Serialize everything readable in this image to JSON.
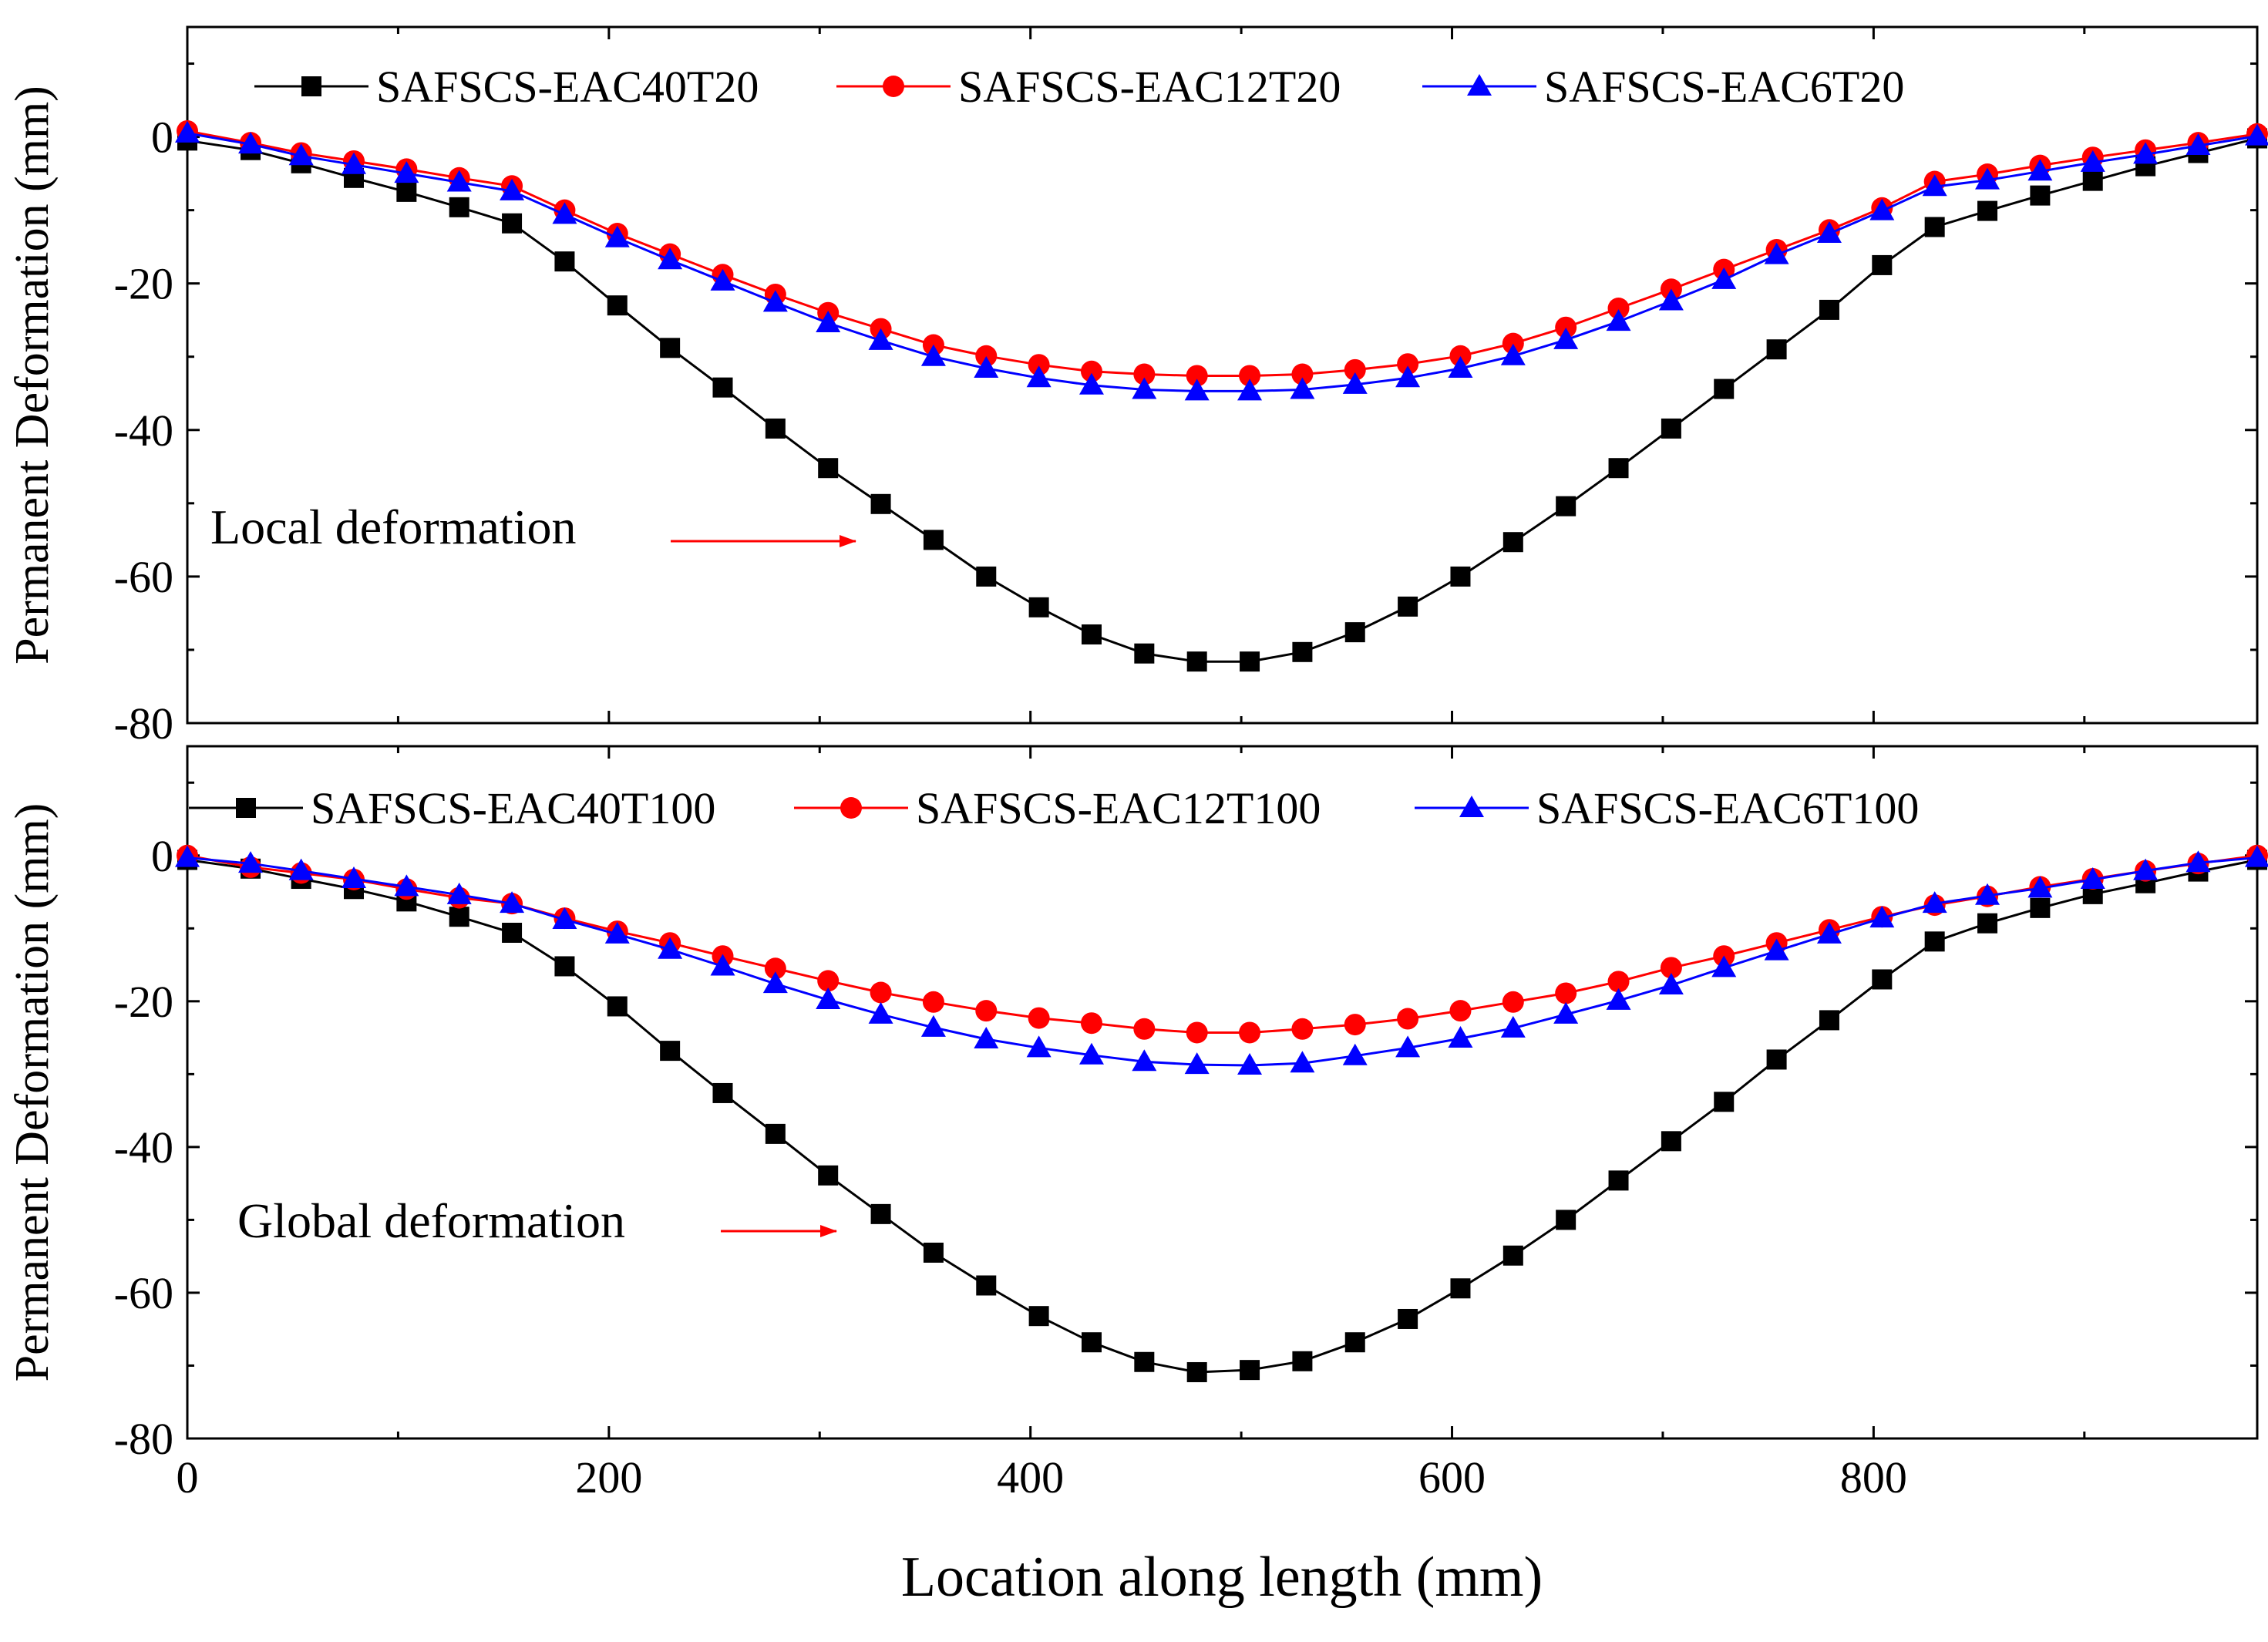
{
  "chart_data": [
    {
      "type": "line",
      "panel": "top",
      "xlabel": "Location along length (mm)",
      "ylabel": "Permanent Deformation (mm)",
      "xlim": [
        0,
        982
      ],
      "ylim": [
        -80,
        15
      ],
      "x_ticks": [
        0,
        200,
        400,
        600,
        800
      ],
      "y_ticks": [
        0,
        -20,
        -40,
        -60,
        -80
      ],
      "annotation": "Local deformation",
      "legend_position": "top",
      "x": [
        0,
        30,
        54,
        79,
        104,
        129,
        154,
        179,
        204,
        229,
        254,
        279,
        304,
        329,
        354,
        379,
        404,
        429,
        454,
        479,
        504,
        529,
        554,
        579,
        604,
        629,
        654,
        679,
        704,
        729,
        754,
        779,
        804,
        829,
        854,
        879,
        904,
        929,
        954,
        982
      ],
      "series": [
        {
          "name": "SAFSCS-EAC40T20",
          "color": "#000000",
          "marker": "square",
          "values": [
            -0.5,
            -1.8,
            -3.6,
            -5.6,
            -7.5,
            -9.6,
            -11.8,
            -17,
            -23,
            -28.8,
            -34.2,
            -39.8,
            -45.2,
            -50.1,
            -55,
            -60,
            -64.2,
            -67.9,
            -70.5,
            -71.6,
            -71.6,
            -70.3,
            -67.6,
            -64.1,
            -60,
            -55.3,
            -50.4,
            -45.2,
            -39.8,
            -34.4,
            -29,
            -23.6,
            -17.5,
            -12.3,
            -10.1,
            -8,
            -6,
            -4,
            -2.2,
            -0.2
          ]
        },
        {
          "name": "SAFSCS-EAC12T20",
          "color": "#ff0000",
          "marker": "circle",
          "values": [
            0.8,
            -0.8,
            -2.2,
            -3.3,
            -4.4,
            -5.6,
            -6.7,
            -10,
            -13.2,
            -16,
            -18.8,
            -21.5,
            -24,
            -26.2,
            -28.4,
            -29.9,
            -31.1,
            -32,
            -32.4,
            -32.6,
            -32.6,
            -32.4,
            -31.8,
            -31,
            -29.9,
            -28.2,
            -26,
            -23.4,
            -20.8,
            -18.1,
            -15.4,
            -12.7,
            -9.7,
            -6.1,
            -5.1,
            -3.9,
            -2.8,
            -1.8,
            -0.8,
            0.4
          ]
        },
        {
          "name": "SAFSCS-EAC6T20",
          "color": "#0000ff",
          "marker": "triangle",
          "values": [
            0.5,
            -1,
            -2.6,
            -3.8,
            -5,
            -6.2,
            -7.4,
            -10.6,
            -13.8,
            -16.8,
            -19.7,
            -22.6,
            -25.4,
            -27.8,
            -30,
            -31.6,
            -32.9,
            -33.9,
            -34.5,
            -34.7,
            -34.7,
            -34.5,
            -33.8,
            -32.9,
            -31.6,
            -29.9,
            -27.7,
            -25.2,
            -22.4,
            -19.5,
            -16.1,
            -13.2,
            -10.1,
            -6.8,
            -5.9,
            -4.7,
            -3.5,
            -2.4,
            -1.2,
            0.1
          ]
        }
      ]
    },
    {
      "type": "line",
      "panel": "bottom",
      "xlabel": "Location along length (mm)",
      "ylabel": "Permanent Deformation (mm)",
      "xlim": [
        0,
        982
      ],
      "ylim": [
        -80,
        15
      ],
      "x_ticks": [
        0,
        200,
        400,
        600,
        800
      ],
      "y_ticks": [
        0,
        -20,
        -40,
        -60,
        -80
      ],
      "annotation": "Global deformation",
      "legend_position": "top",
      "x": [
        0,
        30,
        54,
        79,
        104,
        129,
        154,
        179,
        204,
        229,
        254,
        279,
        304,
        329,
        354,
        379,
        404,
        429,
        454,
        479,
        504,
        529,
        554,
        579,
        604,
        629,
        654,
        679,
        704,
        729,
        754,
        779,
        804,
        829,
        854,
        879,
        904,
        929,
        954,
        982
      ],
      "series": [
        {
          "name": "SAFSCS-EAC40T100",
          "color": "#000000",
          "marker": "square",
          "values": [
            -0.6,
            -1.8,
            -3.2,
            -4.6,
            -6.3,
            -8.4,
            -10.6,
            -15.2,
            -20.7,
            -26.8,
            -32.6,
            -38.2,
            -43.9,
            -49.2,
            -54.5,
            -59,
            -63.2,
            -66.8,
            -69.5,
            -70.9,
            -70.6,
            -69.4,
            -66.8,
            -63.6,
            -59.4,
            -54.9,
            -50,
            -44.6,
            -39.2,
            -33.8,
            -28,
            -22.6,
            -17,
            -11.8,
            -9.3,
            -7.2,
            -5.3,
            -3.8,
            -2.2,
            -0.6
          ]
        },
        {
          "name": "SAFSCS-EAC12T100",
          "color": "#ff0000",
          "marker": "circle",
          "values": [
            0,
            -1.6,
            -2.4,
            -3.3,
            -4.6,
            -5.8,
            -6.6,
            -8.6,
            -10.4,
            -12,
            -13.8,
            -15.5,
            -17.2,
            -18.8,
            -20.1,
            -21.3,
            -22.3,
            -23,
            -23.8,
            -24.3,
            -24.3,
            -23.8,
            -23.2,
            -22.4,
            -21.3,
            -20.1,
            -18.9,
            -17.3,
            -15.4,
            -13.8,
            -12,
            -10.2,
            -8.4,
            -6.8,
            -5.6,
            -4.3,
            -3.2,
            -2.1,
            -1.1,
            0
          ]
        },
        {
          "name": "SAFSCS-EAC6T100",
          "color": "#0000ff",
          "marker": "triangle",
          "values": [
            -0.3,
            -1.1,
            -2.1,
            -3.2,
            -4.3,
            -5.4,
            -6.6,
            -8.8,
            -10.8,
            -12.9,
            -15.2,
            -17.6,
            -19.8,
            -21.8,
            -23.6,
            -25.2,
            -26.4,
            -27.4,
            -28.3,
            -28.7,
            -28.8,
            -28.5,
            -27.5,
            -26.4,
            -25.1,
            -23.7,
            -21.8,
            -19.9,
            -17.8,
            -15.4,
            -13.1,
            -10.8,
            -8.6,
            -6.6,
            -5.5,
            -4.5,
            -3.3,
            -2.1,
            -1,
            -0.3
          ]
        }
      ]
    }
  ]
}
